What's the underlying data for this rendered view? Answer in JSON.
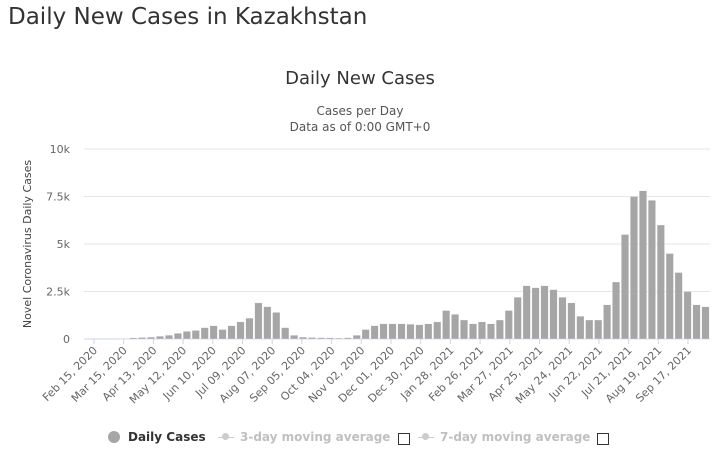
{
  "page": {
    "title": "Daily New Cases in Kazakhstan"
  },
  "chart_data": {
    "type": "bar",
    "title": "Daily New Cases",
    "subtitle_lines": [
      "Cases per Day",
      "Data as of 0:00 GMT+0"
    ],
    "ylabel": "Novel Coronavirus Daily Cases",
    "xlabel": "",
    "ylim": [
      0,
      10000
    ],
    "yticks": [
      0,
      2500,
      5000,
      7500,
      10000
    ],
    "ytick_labels": [
      "0",
      "2.5k",
      "5k",
      "7.5k",
      "10k"
    ],
    "xtick_labels": [
      "Feb 15, 2020",
      "Mar 15, 2020",
      "Apr 13, 2020",
      "May 12, 2020",
      "Jun 10, 2020",
      "Jul 09, 2020",
      "Aug 07, 2020",
      "Sep 05, 2020",
      "Oct 04, 2020",
      "Nov 02, 2020",
      "Dec 01, 2020",
      "Dec 30, 2020",
      "Jan 28, 2021",
      "Feb 26, 2021",
      "Mar 27, 2021",
      "Apr 25, 2021",
      "May 24, 2021",
      "Jun 22, 2021",
      "Jul 21, 2021",
      "Aug 19, 2021",
      "Sep 17, 2021"
    ],
    "grid": true,
    "series": [
      {
        "name": "Daily Cases",
        "color": "#a6a6a6",
        "x_start": "Feb 15, 2020",
        "step_days": 7,
        "values": [
          0,
          0,
          0,
          0,
          30,
          60,
          80,
          100,
          150,
          200,
          300,
          400,
          450,
          600,
          700,
          500,
          700,
          900,
          1100,
          1900,
          1700,
          1400,
          600,
          200,
          100,
          80,
          70,
          60,
          50,
          70,
          200,
          500,
          700,
          800,
          800,
          800,
          780,
          750,
          800,
          900,
          1500,
          1300,
          1000,
          800,
          900,
          800,
          1000,
          1500,
          2200,
          2800,
          2700,
          2800,
          2600,
          2200,
          1900,
          1200,
          1000,
          1000,
          1800,
          3000,
          5500,
          7500,
          7800,
          7300,
          6000,
          4500,
          3500,
          2500,
          1800,
          1700
        ]
      }
    ]
  },
  "legend": {
    "items": [
      {
        "label": "Daily Cases"
      },
      {
        "label": "3-day moving average"
      },
      {
        "label": "7-day moving average"
      }
    ]
  }
}
